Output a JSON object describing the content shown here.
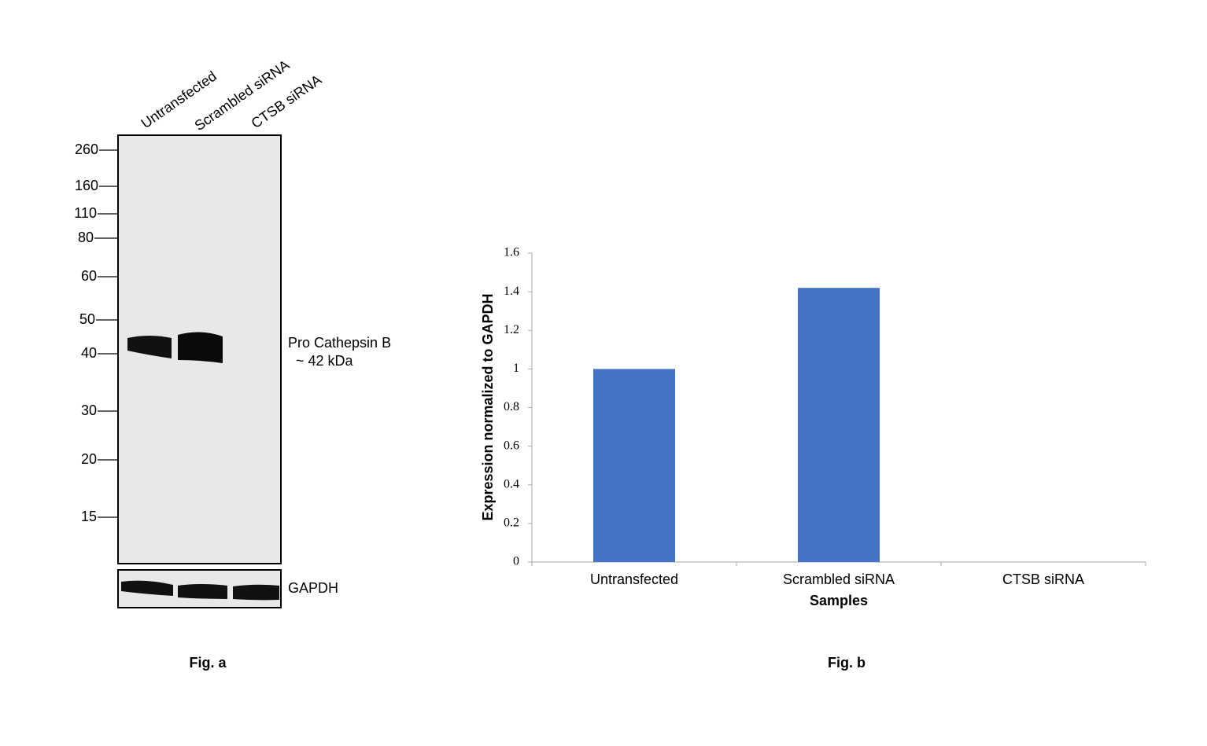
{
  "blot": {
    "lanes": [
      "Untransfected",
      "Scrambled siRNA",
      "CTSB siRNA"
    ],
    "markers": [
      260,
      160,
      110,
      80,
      60,
      50,
      40,
      30,
      20,
      15
    ],
    "band_label": "Pro Cathepsin B",
    "band_size": "~ 42 kDa",
    "loading_control": "GAPDH",
    "figure_label": "Fig. a"
  },
  "chart_data": {
    "type": "bar",
    "categories": [
      "Untransfected",
      "Scrambled siRNA",
      "CTSB siRNA"
    ],
    "values": [
      1,
      1.42,
      0
    ],
    "color": "#4472c4",
    "ylim": [
      0,
      1.6
    ],
    "yticks": [
      0,
      0.2,
      0.4,
      0.6,
      0.8,
      1,
      1.2,
      1.4,
      1.6
    ],
    "xlabel": "Samples",
    "ylabel": "Expression normalized to GAPDH",
    "figure_label": "Fig. b"
  }
}
